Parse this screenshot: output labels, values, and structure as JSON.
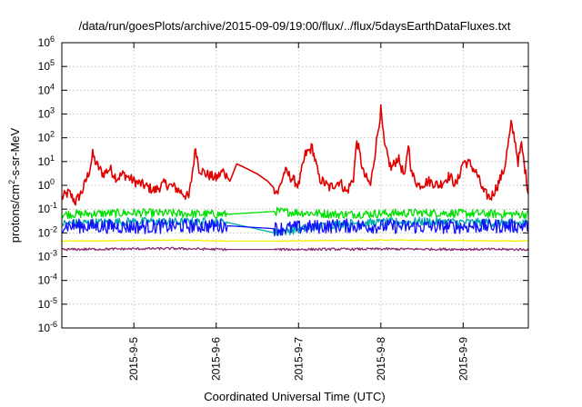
{
  "chart_data": {
    "type": "line",
    "title": "/data/run/goesPlots/archive/2015-09-09/19:00/flux/../flux/5daysEarthDataFluxes.txt",
    "xlabel": "Coordinated Universal Time (UTC)",
    "ylabel_parts": [
      "protons/cm",
      "2",
      "-s-sr-MeV"
    ],
    "yscale": "log",
    "ylim": [
      1e-06,
      1000000.0
    ],
    "xlim": [
      "2015-09-04T03:00",
      "2015-09-09T19:00"
    ],
    "grid": true,
    "x_ticks": [
      "2015-9-5",
      "2015-9-6",
      "2015-9-7",
      "2015-9-8",
      "2015-9-9"
    ],
    "y_ticks": [
      {
        "base": "10",
        "exp": "-6"
      },
      {
        "base": "10",
        "exp": "-5"
      },
      {
        "base": "10",
        "exp": "-4"
      },
      {
        "base": "10",
        "exp": "-3"
      },
      {
        "base": "10",
        "exp": "-2"
      },
      {
        "base": "10",
        "exp": "-1"
      },
      {
        "base": "10",
        "exp": "0"
      },
      {
        "base": "10",
        "exp": "1"
      },
      {
        "base": "10",
        "exp": "2"
      },
      {
        "base": "10",
        "exp": "3"
      },
      {
        "base": "10",
        "exp": "4"
      },
      {
        "base": "10",
        "exp": "5"
      },
      {
        "base": "10",
        "exp": "6"
      }
    ],
    "data_gap": [
      "2015-09-06T03:00",
      "2015-09-06T17:00"
    ],
    "series": [
      {
        "color": "#e00000",
        "points": [
          [
            "2015-09-04T03:00",
            0.3
          ],
          [
            "2015-09-04T05:00",
            0.5
          ],
          [
            "2015-09-04T07:00",
            0.2
          ],
          [
            "2015-09-04T09:00",
            0.6
          ],
          [
            "2015-09-04T11:00",
            4
          ],
          [
            "2015-09-04T12:00",
            20
          ],
          [
            "2015-09-04T13:00",
            8
          ],
          [
            "2015-09-04T15:00",
            3
          ],
          [
            "2015-09-04T17:00",
            5
          ],
          [
            "2015-09-04T19:00",
            2
          ],
          [
            "2015-09-04T21:00",
            3
          ],
          [
            "2015-09-05T00:00",
            1.5
          ],
          [
            "2015-09-05T03:00",
            1
          ],
          [
            "2015-09-05T06:00",
            0.6
          ],
          [
            "2015-09-05T09:00",
            1.2
          ],
          [
            "2015-09-05T12:00",
            0.8
          ],
          [
            "2015-09-05T14:00",
            0.5
          ],
          [
            "2015-09-05T16:00",
            0.3
          ],
          [
            "2015-09-05T17:00",
            3
          ],
          [
            "2015-09-05T18:00",
            40
          ],
          [
            "2015-09-05T19:00",
            5
          ],
          [
            "2015-09-05T21:00",
            3
          ],
          [
            "2015-09-06T00:00",
            2
          ],
          [
            "2015-09-06T02:00",
            4
          ],
          [
            "2015-09-06T04:00",
            1.5
          ],
          [
            "2015-09-06T06:00",
            8
          ],
          [
            "2015-09-06T09:00",
            5
          ],
          [
            "2015-09-06T12:00",
            3
          ],
          [
            "2015-09-06T15:00",
            1.5
          ],
          [
            "2015-09-06T18:00",
            0.5
          ],
          [
            "2015-09-06T20:00",
            4
          ],
          [
            "2015-09-06T22:00",
            2
          ],
          [
            "2015-09-07T00:00",
            1
          ],
          [
            "2015-09-07T02:00",
            20
          ],
          [
            "2015-09-07T04:00",
            40
          ],
          [
            "2015-09-07T06:00",
            2
          ],
          [
            "2015-09-07T09:00",
            0.8
          ],
          [
            "2015-09-07T12:00",
            1.5
          ],
          [
            "2015-09-07T14:00",
            0.5
          ],
          [
            "2015-09-07T16:00",
            2
          ],
          [
            "2015-09-07T17:00",
            80
          ],
          [
            "2015-09-07T19:00",
            3
          ],
          [
            "2015-09-07T21:00",
            1
          ],
          [
            "2015-09-08T00:00",
            1500
          ],
          [
            "2015-09-08T01:00",
            50
          ],
          [
            "2015-09-08T03:00",
            5
          ],
          [
            "2015-09-08T05:00",
            15
          ],
          [
            "2015-09-08T07:00",
            2
          ],
          [
            "2015-09-08T08:00",
            60
          ],
          [
            "2015-09-08T09:00",
            3
          ],
          [
            "2015-09-08T11:00",
            1
          ],
          [
            "2015-09-08T14:00",
            1.5
          ],
          [
            "2015-09-08T17:00",
            1
          ],
          [
            "2015-09-08T20:00",
            2.5
          ],
          [
            "2015-09-08T22:00",
            1
          ],
          [
            "2015-09-09T00:00",
            10
          ],
          [
            "2015-09-09T02:00",
            8
          ],
          [
            "2015-09-09T04:00",
            3
          ],
          [
            "2015-09-09T06:00",
            0.5
          ],
          [
            "2015-09-09T08:00",
            0.3
          ],
          [
            "2015-09-09T10:00",
            1
          ],
          [
            "2015-09-09T12:00",
            5
          ],
          [
            "2015-09-09T14:00",
            350
          ],
          [
            "2015-09-09T15:00",
            100
          ],
          [
            "2015-09-09T16:00",
            10
          ],
          [
            "2015-09-09T17:00",
            50
          ],
          [
            "2015-09-09T18:00",
            5
          ],
          [
            "2015-09-09T19:00",
            0.5
          ]
        ]
      },
      {
        "color": "#00e000",
        "points": [
          [
            "2015-09-04T03:00",
            0.06
          ],
          [
            "2015-09-05T00:00",
            0.07
          ],
          [
            "2015-09-06T03:00",
            0.06
          ],
          [
            "2015-09-06T17:00",
            0.08
          ],
          [
            "2015-09-07T12:00",
            0.06
          ],
          [
            "2015-09-08T12:00",
            0.07
          ],
          [
            "2015-09-09T19:00",
            0.06
          ]
        ]
      },
      {
        "color": "#00a8a8",
        "points": [
          [
            "2015-09-04T03:00",
            0.025
          ],
          [
            "2015-09-05T00:00",
            0.03
          ],
          [
            "2015-09-06T03:00",
            0.028
          ],
          [
            "2015-09-06T17:00",
            0.01
          ],
          [
            "2015-09-07T12:00",
            0.025
          ],
          [
            "2015-09-08T12:00",
            0.03
          ],
          [
            "2015-09-09T19:00",
            0.025
          ]
        ]
      },
      {
        "color": "#1010ff",
        "points": [
          [
            "2015-09-04T03:00",
            0.02
          ],
          [
            "2015-09-05T00:00",
            0.018
          ],
          [
            "2015-09-06T03:00",
            0.02
          ],
          [
            "2015-09-06T17:00",
            0.015
          ],
          [
            "2015-09-07T12:00",
            0.02
          ],
          [
            "2015-09-08T12:00",
            0.018
          ],
          [
            "2015-09-09T19:00",
            0.02
          ]
        ]
      },
      {
        "color": "#f2f200",
        "points": [
          [
            "2015-09-04T03:00",
            0.0045
          ],
          [
            "2015-09-05T12:00",
            0.005
          ],
          [
            "2015-09-06T03:00",
            0.0045
          ],
          [
            "2015-09-06T17:00",
            0.0045
          ],
          [
            "2015-09-08T00:00",
            0.005
          ],
          [
            "2015-09-09T19:00",
            0.0045
          ]
        ]
      },
      {
        "color": "#8b2c6e",
        "points": [
          [
            "2015-09-04T03:00",
            0.002
          ],
          [
            "2015-09-05T12:00",
            0.0022
          ],
          [
            "2015-09-06T03:00",
            0.002
          ],
          [
            "2015-09-06T17:00",
            0.002
          ],
          [
            "2015-09-08T00:00",
            0.0021
          ],
          [
            "2015-09-09T19:00",
            0.002
          ]
        ]
      }
    ]
  }
}
